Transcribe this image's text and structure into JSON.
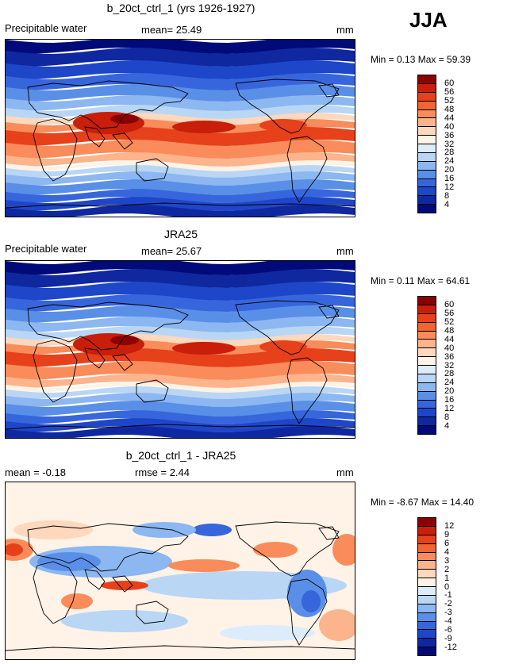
{
  "season": "JJA",
  "panels": [
    {
      "title": "b_20ct_ctrl_1 (yrs 1926-1927)",
      "left_label": "Precipitable water",
      "middle_label": "mean=  25.49",
      "units": "mm",
      "minmax": "Min =    0.13  Max =   59.39",
      "colorbar": {
        "labels": [
          "60",
          "56",
          "52",
          "48",
          "44",
          "40",
          "36",
          "32",
          "28",
          "24",
          "20",
          "16",
          "12",
          "8",
          "4"
        ],
        "colors": [
          "#8b0000",
          "#c81e0a",
          "#e6411a",
          "#f26432",
          "#f98c5a",
          "#fcb48c",
          "#fdd8bc",
          "#fff2e6",
          "#dcecfa",
          "#b9d6f5",
          "#8cb7f0",
          "#5a8fe8",
          "#3766dc",
          "#1e46c8",
          "#0f28a0",
          "#000a78"
        ]
      },
      "map_kind": "precip"
    },
    {
      "title": "JRA25",
      "left_label": "Precipitable water",
      "middle_label": "mean=  25.67",
      "units": "mm",
      "minmax": "Min =    0.11  Max =   64.61",
      "colorbar": {
        "labels": [
          "60",
          "56",
          "52",
          "48",
          "44",
          "40",
          "36",
          "32",
          "28",
          "24",
          "20",
          "16",
          "12",
          "8",
          "4"
        ],
        "colors": [
          "#8b0000",
          "#c81e0a",
          "#e6411a",
          "#f26432",
          "#f98c5a",
          "#fcb48c",
          "#fdd8bc",
          "#fff2e6",
          "#dcecfa",
          "#b9d6f5",
          "#8cb7f0",
          "#5a8fe8",
          "#3766dc",
          "#1e46c8",
          "#0f28a0",
          "#000a78"
        ]
      },
      "map_kind": "precip"
    },
    {
      "title": "b_20ct_ctrl_1 - JRA25",
      "left_label": "mean =   -0.18",
      "middle_label": "rmse =    2.44",
      "units": "mm",
      "minmax": "Min =  -8.67  Max =   14.40",
      "colorbar": {
        "labels": [
          "12",
          "9",
          "6",
          "4",
          "3",
          "2",
          "1",
          "0",
          "-1",
          "-2",
          "-3",
          "-4",
          "-6",
          "-9",
          "-12"
        ],
        "colors": [
          "#8b0000",
          "#c81e0a",
          "#e6411a",
          "#f26432",
          "#f98c5a",
          "#fcb48c",
          "#fdd8bc",
          "#fff2e6",
          "#dcecfa",
          "#b9d6f5",
          "#8cb7f0",
          "#5a8fe8",
          "#3766dc",
          "#1e46c8",
          "#0f28a0",
          "#000a78"
        ]
      },
      "map_kind": "diff"
    }
  ]
}
